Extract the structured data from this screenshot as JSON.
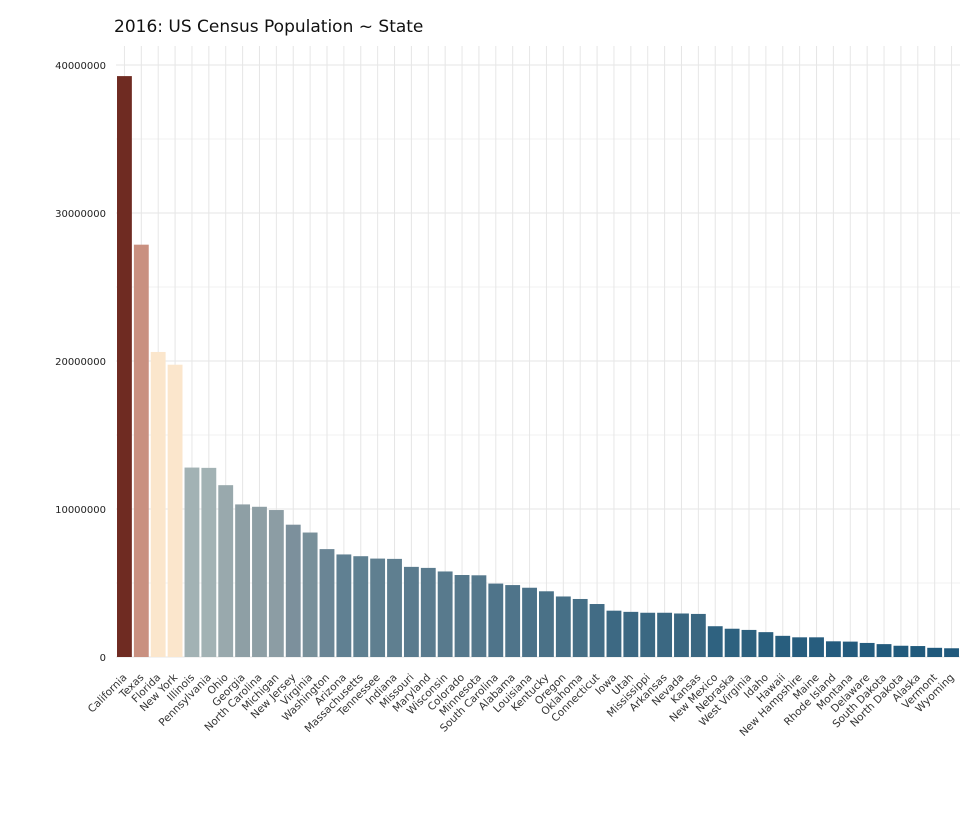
{
  "chart_data": {
    "type": "bar",
    "title": "2016: US Census Population ~ State",
    "xlabel": "",
    "ylabel": "",
    "ylim": [
      0,
      42000000
    ],
    "yticks": [
      "0",
      "10000000",
      "20000000",
      "30000000",
      "40000000"
    ],
    "ytick_values": [
      0,
      10000000,
      20000000,
      30000000,
      40000000
    ],
    "grid": true,
    "legend": "none",
    "categories": [
      "California",
      "Texas",
      "Florida",
      "New York",
      "Illinois",
      "Pennsylvania",
      "Ohio",
      "Georgia",
      "North Carolina",
      "Michigan",
      "New Jersey",
      "Virginia",
      "Washington",
      "Arizona",
      "Massachusetts",
      "Tennessee",
      "Indiana",
      "Missouri",
      "Maryland",
      "Wisconsin",
      "Colorado",
      "Minnesota",
      "South Carolina",
      "Alabama",
      "Louisiana",
      "Kentucky",
      "Oregon",
      "Oklahoma",
      "Connecticut",
      "Iowa",
      "Utah",
      "Mississippi",
      "Arkansas",
      "Nevada",
      "Kansas",
      "New Mexico",
      "Nebraska",
      "West Virginia",
      "Idaho",
      "Hawaii",
      "New Hampshire",
      "Maine",
      "Rhode Island",
      "Montana",
      "Delaware",
      "South Dakota",
      "North Dakota",
      "Alaska",
      "Vermont",
      "Wyoming"
    ],
    "values": [
      39250000,
      27860000,
      20610000,
      19750000,
      12800000,
      12780000,
      11610000,
      10310000,
      10150000,
      9930000,
      8940000,
      8410000,
      7290000,
      6930000,
      6810000,
      6650000,
      6630000,
      6090000,
      6020000,
      5780000,
      5540000,
      5520000,
      4960000,
      4860000,
      4680000,
      4440000,
      4090000,
      3920000,
      3580000,
      3130000,
      3050000,
      2990000,
      2990000,
      2940000,
      2910000,
      2080000,
      1910000,
      1830000,
      1680000,
      1430000,
      1330000,
      1330000,
      1060000,
      1040000,
      950000,
      870000,
      760000,
      740000,
      620000,
      590000
    ],
    "colors": [
      "#6f2b22",
      "#c99080",
      "#fbe6cc",
      "#fbe6cc",
      "#a2b2b4",
      "#a2b2b4",
      "#99a9ad",
      "#8e9fa5",
      "#8e9fa5",
      "#8c9da4",
      "#7c909c",
      "#78909a",
      "#6a8595",
      "#608092",
      "#5f8091",
      "#5f7f90",
      "#5f7f90",
      "#5a7b8e",
      "#5a7b8e",
      "#587a8d",
      "#55788c",
      "#55788c",
      "#4f748a",
      "#4f748a",
      "#4c7289",
      "#4a7187",
      "#477087",
      "#466f86",
      "#426c85",
      "#3d6983",
      "#3c6882",
      "#3b6882",
      "#3b6882",
      "#3a6781",
      "#3a6781",
      "#2f6280",
      "#2d617f",
      "#2c607e",
      "#2a5f7e",
      "#285e7e",
      "#275d7e",
      "#275d7e",
      "#245b7d",
      "#245b7d",
      "#235b7d",
      "#225a7c",
      "#215a7c",
      "#215a7c",
      "#20597c",
      "#20597c"
    ]
  }
}
